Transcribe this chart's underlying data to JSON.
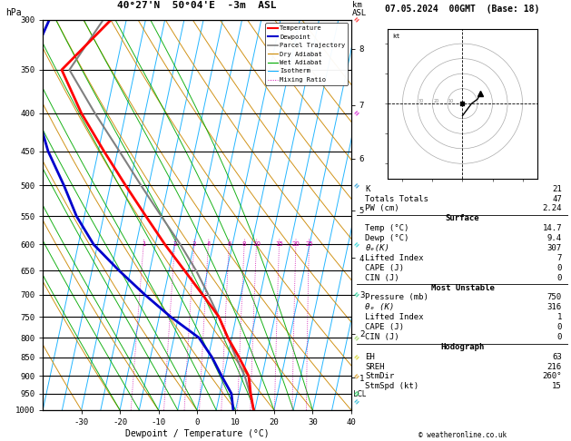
{
  "title_left": "40°27'N  50°04'E  -3m  ASL",
  "title_right": "07.05.2024  00GMT  (Base: 18)",
  "xlabel": "Dewpoint / Temperature (°C)",
  "pressure_levels": [
    300,
    350,
    400,
    450,
    500,
    550,
    600,
    650,
    700,
    750,
    800,
    850,
    900,
    950,
    1000
  ],
  "temp_ticks": [
    -30,
    -20,
    -10,
    0,
    10,
    20,
    30,
    40
  ],
  "skew_factor": 18,
  "isotherm_temps": [
    -40,
    -35,
    -30,
    -25,
    -20,
    -15,
    -10,
    -5,
    0,
    5,
    10,
    15,
    20,
    25,
    30,
    35,
    40
  ],
  "dry_adiabat_T0s": [
    -40,
    -30,
    -20,
    -10,
    0,
    10,
    20,
    30,
    40,
    50,
    60,
    70,
    80,
    90,
    100,
    110,
    120
  ],
  "wet_adiabat_T0s": [
    -20,
    -15,
    -10,
    -5,
    0,
    5,
    10,
    15,
    20,
    25,
    30
  ],
  "mixing_ratios": [
    1,
    2,
    3,
    4,
    6,
    8,
    10,
    15,
    20,
    25
  ],
  "temperature_profile": {
    "pressure": [
      1000,
      950,
      900,
      850,
      800,
      750,
      700,
      650,
      600,
      550,
      500,
      450,
      400,
      350,
      300
    ],
    "temp": [
      14.7,
      13.0,
      11.5,
      8.0,
      4.0,
      0.5,
      -5.0,
      -11.0,
      -17.5,
      -24.0,
      -31.0,
      -38.5,
      -46.5,
      -54.0,
      -44.0
    ]
  },
  "dewpoint_profile": {
    "pressure": [
      1000,
      950,
      900,
      850,
      800,
      750,
      700,
      650,
      600,
      550,
      500,
      450,
      400,
      350,
      300
    ],
    "temp": [
      9.4,
      8.0,
      4.5,
      1.0,
      -3.5,
      -12.0,
      -20.0,
      -28.0,
      -36.0,
      -42.0,
      -47.0,
      -53.0,
      -58.0,
      -63.0,
      -60.0
    ]
  },
  "parcel_profile": {
    "pressure": [
      1000,
      950,
      900,
      850,
      800,
      750,
      700,
      650,
      600,
      550,
      500,
      450,
      400,
      350,
      300
    ],
    "temp": [
      14.7,
      12.8,
      10.5,
      7.2,
      4.0,
      0.5,
      -3.5,
      -8.0,
      -13.5,
      -20.0,
      -27.0,
      -34.5,
      -43.0,
      -52.0,
      -46.0
    ]
  },
  "lcl_pressure": 953,
  "color_temp": "#ff0000",
  "color_dewp": "#0000cc",
  "color_parcel": "#808080",
  "color_dry_adiabat": "#cc8800",
  "color_wet_adiabat": "#00aa00",
  "color_isotherm": "#00aaff",
  "color_mixing": "#cc00aa",
  "km_asl_labels": [
    8,
    7,
    6,
    5,
    4,
    3,
    2,
    1
  ],
  "km_pressures": [
    328,
    390,
    460,
    540,
    625,
    700,
    790,
    905
  ],
  "info_panel": {
    "K": 21,
    "Totals Totals": 47,
    "PW (cm)": 2.24,
    "Surface_Temp": 14.7,
    "Surface_Dewp": 9.4,
    "Surface_theta_e": 307,
    "Surface_LI": 7,
    "Surface_CAPE": 0,
    "Surface_CIN": 0,
    "MU_Pressure": 750,
    "MU_theta_e": 316,
    "MU_LI": 1,
    "MU_CAPE": 0,
    "MU_CIN": 0,
    "Hodo_EH": 63,
    "Hodo_SREH": 216,
    "Hodo_StmDir": "260°",
    "Hodo_StmSpd": 15
  },
  "legend_entries": [
    [
      "Temperature",
      "#ff0000",
      "solid",
      1.5
    ],
    [
      "Dewpoint",
      "#0000cc",
      "solid",
      1.5
    ],
    [
      "Parcel Trajectory",
      "#808080",
      "solid",
      1.2
    ],
    [
      "Dry Adiabat",
      "#cc8800",
      "solid",
      0.8
    ],
    [
      "Wet Adiabat",
      "#00aa00",
      "solid",
      0.8
    ],
    [
      "Isotherm",
      "#00aaff",
      "solid",
      0.7
    ],
    [
      "Mixing Ratio",
      "#cc00aa",
      "dotted",
      0.7
    ]
  ]
}
